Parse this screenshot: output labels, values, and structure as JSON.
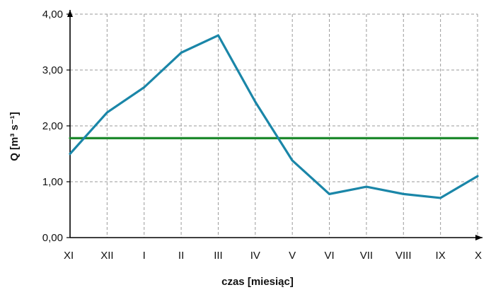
{
  "chart_data": {
    "type": "line",
    "categories": [
      "XI",
      "XII",
      "I",
      "II",
      "III",
      "IV",
      "V",
      "VI",
      "VII",
      "VIII",
      "IX",
      "X"
    ],
    "series": [
      {
        "values": [
          1.5,
          2.24,
          2.69,
          3.31,
          3.62,
          2.43,
          1.38,
          0.78,
          0.91,
          0.78,
          0.71,
          1.1
        ],
        "color": "#1a86a8"
      },
      {
        "values": [
          1.78,
          1.78,
          1.78,
          1.78,
          1.78,
          1.78,
          1.78,
          1.78,
          1.78,
          1.78,
          1.78,
          1.78
        ],
        "color": "#1f8a2e"
      }
    ],
    "xlabel": "czas [miesiąc]",
    "ylabel": "Q [m³ s⁻¹]",
    "ylim": [
      0,
      4
    ],
    "yticks": [
      "0,00",
      "1,00",
      "2,00",
      "3,00",
      "4,00"
    ],
    "grid": true
  }
}
